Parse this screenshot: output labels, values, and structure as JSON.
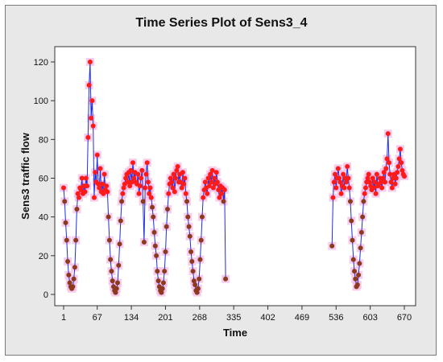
{
  "chart_data": {
    "type": "line",
    "title": "Time Series Plot of Sens3_4",
    "xlabel": "Time",
    "ylabel": "Sens3 traffic flow",
    "xlim": [
      1,
      670
    ],
    "ylim": [
      0,
      120
    ],
    "x_ticks": [
      1,
      67,
      134,
      201,
      268,
      335,
      402,
      469,
      536,
      603,
      670
    ],
    "y_ticks": [
      0,
      20,
      40,
      60,
      80,
      100,
      120
    ],
    "grid": false,
    "colors": {
      "line": "#1f2fe0",
      "marker_high": "#ff1a1a",
      "marker_low": "#8b3a1f",
      "halo": "#f3b8e6",
      "plot_bg": "#ffffff",
      "frame_bg": "#e8e8e8"
    },
    "series": [
      {
        "points": [
          [
            1,
            55
          ],
          [
            3,
            48
          ],
          [
            5,
            37
          ],
          [
            7,
            28
          ],
          [
            9,
            17
          ],
          [
            11,
            10
          ],
          [
            13,
            6
          ],
          [
            15,
            4
          ],
          [
            17,
            3
          ],
          [
            19,
            4
          ],
          [
            21,
            8
          ],
          [
            23,
            14
          ],
          [
            25,
            28
          ],
          [
            27,
            44
          ],
          [
            29,
            52
          ],
          [
            31,
            50
          ],
          [
            33,
            55
          ],
          [
            35,
            54
          ],
          [
            37,
            60
          ],
          [
            39,
            52
          ],
          [
            41,
            56
          ],
          [
            43,
            53
          ],
          [
            45,
            60
          ],
          [
            47,
            56
          ],
          [
            49,
            81
          ],
          [
            51,
            108
          ],
          [
            53,
            120
          ],
          [
            55,
            91
          ],
          [
            57,
            100
          ],
          [
            59,
            87
          ],
          [
            61,
            50
          ],
          [
            63,
            63
          ],
          [
            65,
            58
          ],
          [
            67,
            72
          ],
          [
            69,
            57
          ],
          [
            71,
            55
          ],
          [
            73,
            65
          ],
          [
            75,
            53
          ],
          [
            77,
            57
          ],
          [
            79,
            52
          ],
          [
            81,
            62
          ],
          [
            83,
            54
          ],
          [
            85,
            56
          ],
          [
            87,
            53
          ],
          [
            89,
            40
          ],
          [
            91,
            28
          ],
          [
            93,
            18
          ],
          [
            95,
            12
          ],
          [
            97,
            7
          ],
          [
            99,
            4
          ],
          [
            101,
            2
          ],
          [
            103,
            1
          ],
          [
            105,
            3
          ],
          [
            107,
            6
          ],
          [
            109,
            15
          ],
          [
            111,
            26
          ],
          [
            113,
            38
          ],
          [
            115,
            48
          ],
          [
            117,
            52
          ],
          [
            119,
            55
          ],
          [
            121,
            57
          ],
          [
            123,
            60
          ],
          [
            125,
            62
          ],
          [
            127,
            58
          ],
          [
            129,
            63
          ],
          [
            131,
            56
          ],
          [
            133,
            64
          ],
          [
            135,
            58
          ],
          [
            137,
            68
          ],
          [
            139,
            60
          ],
          [
            141,
            63
          ],
          [
            143,
            58
          ],
          [
            145,
            57
          ],
          [
            147,
            62
          ],
          [
            149,
            52
          ],
          [
            151,
            56
          ],
          [
            153,
            60
          ],
          [
            155,
            64
          ],
          [
            157,
            48
          ],
          [
            159,
            27
          ],
          [
            161,
            55
          ],
          [
            163,
            62
          ],
          [
            165,
            68
          ],
          [
            167,
            58
          ],
          [
            169,
            52
          ],
          [
            171,
            55
          ],
          [
            173,
            50
          ],
          [
            175,
            45
          ],
          [
            177,
            40
          ],
          [
            179,
            32
          ],
          [
            181,
            25
          ],
          [
            183,
            20
          ],
          [
            185,
            12
          ],
          [
            187,
            7
          ],
          [
            189,
            4
          ],
          [
            191,
            2
          ],
          [
            193,
            1
          ],
          [
            195,
            3
          ],
          [
            197,
            6
          ],
          [
            199,
            12
          ],
          [
            201,
            22
          ],
          [
            203,
            35
          ],
          [
            205,
            44
          ],
          [
            207,
            52
          ],
          [
            209,
            57
          ],
          [
            211,
            60
          ],
          [
            213,
            58
          ],
          [
            215,
            55
          ],
          [
            217,
            62
          ],
          [
            219,
            53
          ],
          [
            221,
            60
          ],
          [
            223,
            64
          ],
          [
            225,
            66
          ],
          [
            227,
            58
          ],
          [
            229,
            62
          ],
          [
            231,
            58
          ],
          [
            233,
            55
          ],
          [
            235,
            63
          ],
          [
            237,
            57
          ],
          [
            239,
            60
          ],
          [
            241,
            52
          ],
          [
            243,
            48
          ],
          [
            245,
            40
          ],
          [
            247,
            35
          ],
          [
            249,
            30
          ],
          [
            251,
            22
          ],
          [
            253,
            17
          ],
          [
            255,
            12
          ],
          [
            257,
            7
          ],
          [
            259,
            5
          ],
          [
            261,
            2
          ],
          [
            263,
            1
          ],
          [
            265,
            3
          ],
          [
            267,
            8
          ],
          [
            269,
            18
          ],
          [
            271,
            28
          ],
          [
            273,
            40
          ],
          [
            275,
            50
          ],
          [
            277,
            54
          ],
          [
            279,
            58
          ],
          [
            281,
            55
          ],
          [
            283,
            52
          ],
          [
            285,
            60
          ],
          [
            287,
            56
          ],
          [
            289,
            62
          ],
          [
            291,
            58
          ],
          [
            293,
            64
          ],
          [
            295,
            55
          ],
          [
            297,
            60
          ],
          [
            299,
            57
          ],
          [
            301,
            63
          ],
          [
            303,
            58
          ],
          [
            305,
            54
          ],
          [
            307,
            50
          ],
          [
            309,
            56
          ],
          [
            311,
            52
          ],
          [
            313,
            55
          ],
          [
            315,
            48
          ],
          [
            317,
            54
          ],
          [
            319,
            8
          ]
        ]
      },
      {
        "points": [
          [
            528,
            25
          ],
          [
            530,
            50
          ],
          [
            532,
            58
          ],
          [
            534,
            62
          ],
          [
            536,
            55
          ],
          [
            538,
            60
          ],
          [
            540,
            65
          ],
          [
            542,
            60
          ],
          [
            544,
            58
          ],
          [
            546,
            52
          ],
          [
            548,
            56
          ],
          [
            550,
            62
          ],
          [
            552,
            55
          ],
          [
            554,
            60
          ],
          [
            556,
            58
          ],
          [
            558,
            66
          ],
          [
            560,
            60
          ],
          [
            562,
            55
          ],
          [
            564,
            48
          ],
          [
            566,
            38
          ],
          [
            568,
            28
          ],
          [
            570,
            18
          ],
          [
            572,
            12
          ],
          [
            574,
            8
          ],
          [
            576,
            4
          ],
          [
            578,
            5
          ],
          [
            580,
            10
          ],
          [
            582,
            16
          ],
          [
            584,
            24
          ],
          [
            586,
            32
          ],
          [
            588,
            40
          ],
          [
            590,
            48
          ],
          [
            592,
            52
          ],
          [
            594,
            55
          ],
          [
            596,
            58
          ],
          [
            598,
            60
          ],
          [
            600,
            62
          ],
          [
            602,
            58
          ],
          [
            604,
            56
          ],
          [
            606,
            54
          ],
          [
            608,
            60
          ],
          [
            610,
            55
          ],
          [
            612,
            58
          ],
          [
            614,
            52
          ],
          [
            616,
            62
          ],
          [
            618,
            56
          ],
          [
            620,
            57
          ],
          [
            622,
            60
          ],
          [
            624,
            58
          ],
          [
            626,
            55
          ],
          [
            628,
            60
          ],
          [
            630,
            63
          ],
          [
            632,
            58
          ],
          [
            634,
            65
          ],
          [
            636,
            70
          ],
          [
            638,
            83
          ],
          [
            640,
            68
          ],
          [
            642,
            62
          ],
          [
            644,
            58
          ],
          [
            646,
            55
          ],
          [
            648,
            60
          ],
          [
            650,
            62
          ],
          [
            652,
            57
          ],
          [
            654,
            60
          ],
          [
            656,
            63
          ],
          [
            658,
            66
          ],
          [
            660,
            70
          ],
          [
            662,
            75
          ],
          [
            664,
            68
          ],
          [
            666,
            64
          ],
          [
            668,
            62
          ],
          [
            670,
            61
          ]
        ]
      }
    ]
  }
}
